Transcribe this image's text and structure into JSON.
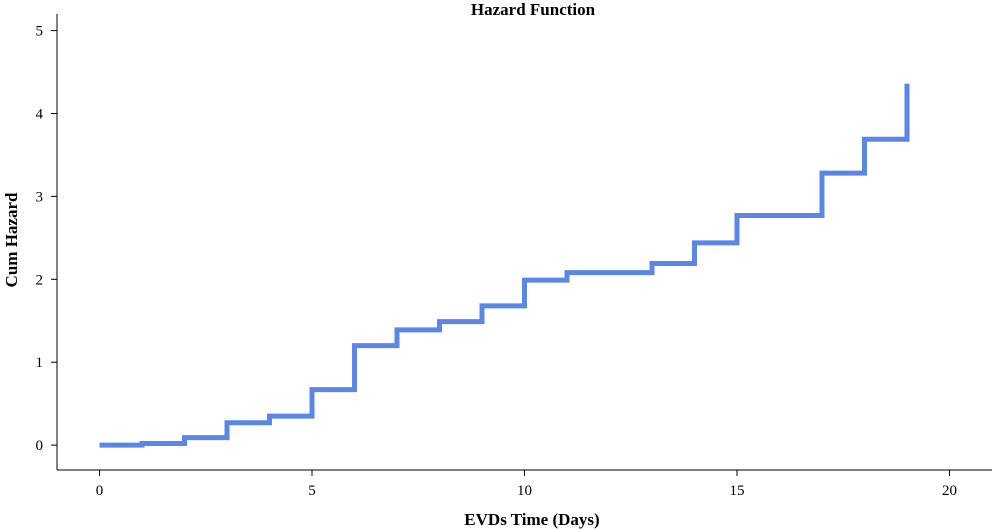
{
  "chart_data": {
    "type": "line",
    "title": "Hazard Function",
    "xlabel": "EVDs Time (Days)",
    "ylabel": "Cum Hazard",
    "xlim": [
      -1,
      21
    ],
    "ylim": [
      -0.3,
      5.2
    ],
    "xticks": [
      "0",
      "5",
      "10",
      "15",
      "20"
    ],
    "yticks": [
      "0",
      "1",
      "2",
      "3",
      "4",
      "5"
    ],
    "grid": false,
    "line_style": "step-post",
    "series_color": "#5b86e5",
    "series": [
      {
        "x": [
          0,
          1,
          2,
          3,
          4,
          5,
          6,
          7,
          8,
          9,
          10,
          11,
          13,
          14,
          15,
          17,
          18,
          19,
          19
        ],
        "values": [
          0,
          0.02,
          0.09,
          0.27,
          0.35,
          0.67,
          1.2,
          1.39,
          1.49,
          1.68,
          1.99,
          2.08,
          2.19,
          2.44,
          2.77,
          3.28,
          3.69,
          3.69,
          4.36
        ]
      }
    ]
  }
}
